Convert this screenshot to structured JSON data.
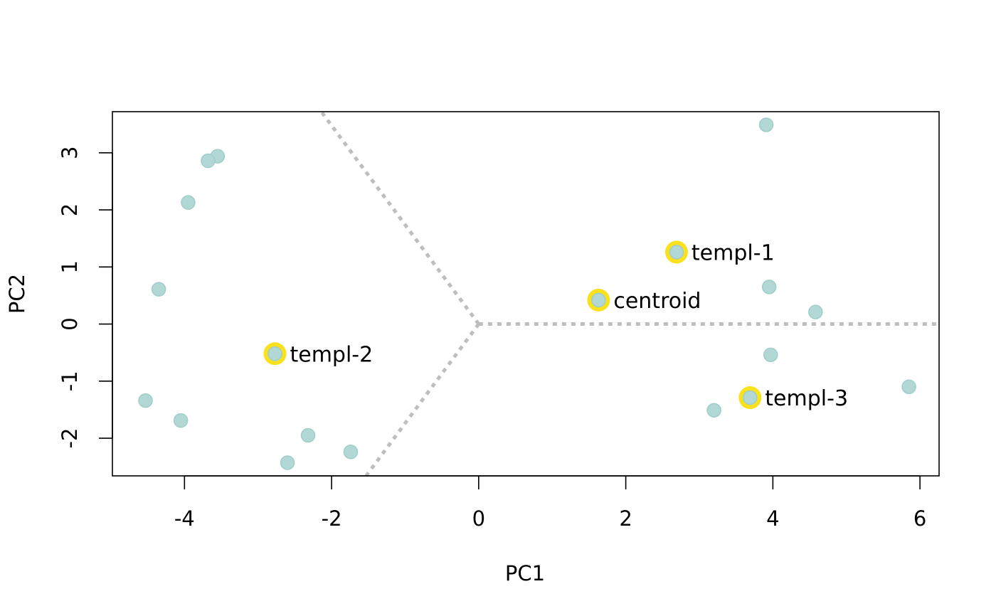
{
  "chart_data": {
    "type": "scatter",
    "title": "",
    "xlabel": "PC1",
    "ylabel": "PC2",
    "xlim": [
      -4.98,
      6.26
    ],
    "ylim": [
      -2.66,
      3.72
    ],
    "x_ticks": [
      -4,
      -2,
      0,
      2,
      4,
      6
    ],
    "x_tick_labels": [
      "-4",
      "-2",
      "0",
      "2",
      "4",
      "6"
    ],
    "y_ticks": [
      -2,
      -1,
      0,
      1,
      2,
      3
    ],
    "y_tick_labels": [
      "-2",
      "-1",
      "0",
      "1",
      "2",
      "3"
    ],
    "grid": false,
    "point_color": "#b2d8d5",
    "point_edge_color": "#9fcdc9",
    "highlight_color": "#f9e11e",
    "divider_color": "#bebebe",
    "points": [
      {
        "x": -3.55,
        "y": 2.94
      },
      {
        "x": -3.68,
        "y": 2.86
      },
      {
        "x": -3.95,
        "y": 2.13
      },
      {
        "x": -4.35,
        "y": 0.61
      },
      {
        "x": -4.53,
        "y": -1.34
      },
      {
        "x": -4.05,
        "y": -1.69
      },
      {
        "x": -2.32,
        "y": -1.95
      },
      {
        "x": -1.74,
        "y": -2.24
      },
      {
        "x": -2.6,
        "y": -2.43
      },
      {
        "x": 3.91,
        "y": 3.49
      },
      {
        "x": 3.95,
        "y": 0.65
      },
      {
        "x": 4.58,
        "y": 0.21
      },
      {
        "x": 3.97,
        "y": -0.54
      },
      {
        "x": 3.2,
        "y": -1.51
      },
      {
        "x": 5.85,
        "y": -1.1
      }
    ],
    "labeled_points": [
      {
        "label": "templ-1",
        "x": 2.69,
        "y": 1.26
      },
      {
        "label": "centroid",
        "x": 1.63,
        "y": 0.42
      },
      {
        "label": "templ-2",
        "x": -2.77,
        "y": -0.52
      },
      {
        "label": "templ-3",
        "x": 3.69,
        "y": -1.29
      }
    ],
    "divider_lines": [
      {
        "from": [
          0,
          0
        ],
        "to": [
          6.26,
          0
        ]
      },
      {
        "from": [
          0,
          0
        ],
        "to": [
          -2.14,
          3.72
        ]
      },
      {
        "from": [
          0,
          0
        ],
        "to": [
          -1.53,
          -2.66
        ]
      }
    ]
  }
}
